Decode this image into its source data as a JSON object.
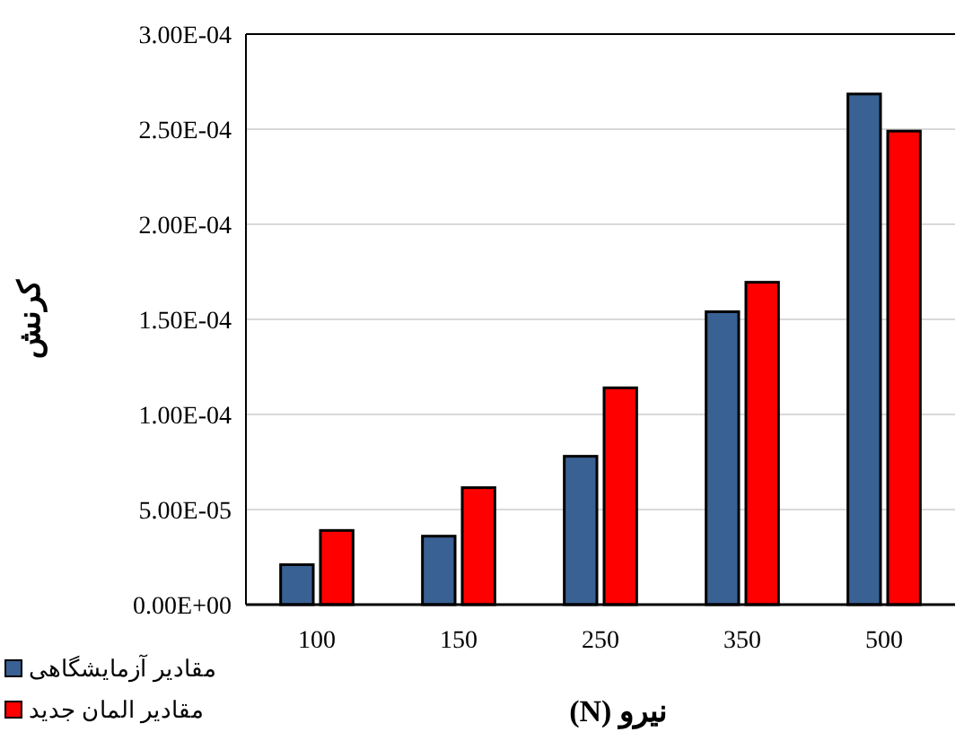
{
  "chart_data": {
    "type": "bar",
    "xlabel": "نیرو (N)",
    "ylabel": "کرنش",
    "categories": [
      "100",
      "150",
      "250",
      "350",
      "500"
    ],
    "series": [
      {
        "name": "مقادیر آزمایشگاهی",
        "color": "#3a6194",
        "values": [
          2.1e-05,
          3.6e-05,
          7.8e-05,
          0.000154,
          0.0002685
        ]
      },
      {
        "name": "مقادیر المان جدید",
        "color": "#ff0000",
        "values": [
          3.9e-05,
          6.15e-05,
          0.000114,
          0.0001695,
          0.000249
        ]
      }
    ],
    "ylim": [
      0,
      0.0003
    ],
    "yticks": [
      {
        "value": 0,
        "label": "0.00E+00"
      },
      {
        "value": 5e-05,
        "label": "5.00E-05"
      },
      {
        "value": 0.0001,
        "label": "1.00E-04"
      },
      {
        "value": 0.00015,
        "label": "1.50E-04"
      },
      {
        "value": 0.0002,
        "label": "2.00E-04"
      },
      {
        "value": 0.00025,
        "label": "2.50E-04"
      },
      {
        "value": 0.0003,
        "label": "3.00E-04"
      }
    ],
    "grid": "y",
    "legend": "bottom left"
  }
}
